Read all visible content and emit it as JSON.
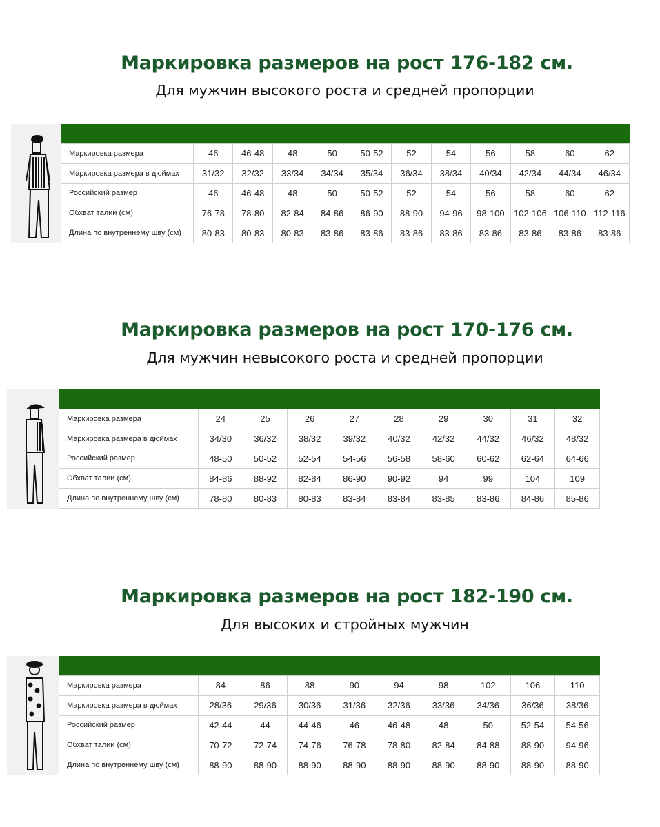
{
  "colors": {
    "title": "#1b5a2c",
    "header_bar": "#1a6a0e"
  },
  "sections": [
    {
      "title": "Маркировка размеров на рост 176-182 см.",
      "subtitle": "Для мужчин высокого роста и средней пропорции",
      "figure_icon": "man-in-striped-sweater-illustration",
      "rows": [
        {
          "label": "Маркировка размера",
          "values": [
            "46",
            "46-48",
            "48",
            "50",
            "50-52",
            "52",
            "54",
            "56",
            "58",
            "60",
            "62"
          ]
        },
        {
          "label": "Маркировка размера в дюймах",
          "values": [
            "31/32",
            "32/32",
            "33/34",
            "34/34",
            "35/34",
            "36/34",
            "38/34",
            "40/34",
            "42/34",
            "44/34",
            "46/34"
          ]
        },
        {
          "label": "Российский размер",
          "values": [
            "46",
            "46-48",
            "48",
            "50",
            "50-52",
            "52",
            "54",
            "56",
            "58",
            "60",
            "62"
          ]
        },
        {
          "label": "Обхват талии (см)",
          "values": [
            "76-78",
            "78-80",
            "82-84",
            "84-86",
            "86-90",
            "88-90",
            "94-96",
            "98-100",
            "102-106",
            "106-110",
            "112-116"
          ]
        },
        {
          "label": "Длина по внутреннему шву (см)",
          "values": [
            "80-83",
            "80-83",
            "80-83",
            "83-86",
            "83-86",
            "83-86",
            "83-86",
            "83-86",
            "83-86",
            "83-86",
            "83-86"
          ]
        }
      ]
    },
    {
      "title": "Маркировка размеров на рост 170-176 см.",
      "subtitle": "Для мужчин невысокого роста и средней пропорции",
      "figure_icon": "man-in-cap-illustration",
      "rows": [
        {
          "label": "Маркировка размера",
          "values": [
            "24",
            "25",
            "26",
            "27",
            "28",
            "29",
            "30",
            "31",
            "32"
          ]
        },
        {
          "label": "Маркировка размера в дюймах",
          "values": [
            "34/30",
            "36/32",
            "38/32",
            "39/32",
            "40/32",
            "42/32",
            "44/32",
            "46/32",
            "48/32"
          ]
        },
        {
          "label": "Российский размер",
          "values": [
            "48-50",
            "50-52",
            "52-54",
            "54-56",
            "56-58",
            "58-60",
            "60-62",
            "62-64",
            "64-66"
          ]
        },
        {
          "label": "Обхват талии (см)",
          "values": [
            "84-86",
            "88-92",
            "82-84",
            "86-90",
            "90-92",
            "94",
            "99",
            "104",
            "109"
          ]
        },
        {
          "label": "Длина по внутреннему шву (см)",
          "values": [
            "78-80",
            "80-83",
            "80-83",
            "83-84",
            "83-84",
            "83-85",
            "83-86",
            "84-86",
            "85-86"
          ]
        }
      ]
    },
    {
      "title": "Маркировка размеров на рост 182-190 см.",
      "subtitle": "Для высоких и стройных мужчин",
      "figure_icon": "man-in-hat-patterned-shirt-illustration",
      "rows": [
        {
          "label": "Маркировка размера",
          "values": [
            "84",
            "86",
            "88",
            "90",
            "94",
            "98",
            "102",
            "106",
            "110"
          ]
        },
        {
          "label": "Маркировка размера в дюймах",
          "values": [
            "28/36",
            "29/36",
            "30/36",
            "31/36",
            "32/36",
            "33/36",
            "34/36",
            "36/36",
            "38/36"
          ]
        },
        {
          "label": "Российский размер",
          "values": [
            "42-44",
            "44",
            "44-46",
            "46",
            "46-48",
            "48",
            "50",
            "52-54",
            "54-56"
          ]
        },
        {
          "label": "Обхват талии (см)",
          "values": [
            "70-72",
            "72-74",
            "74-76",
            "76-78",
            "78-80",
            "82-84",
            "84-88",
            "88-90",
            "94-96"
          ]
        },
        {
          "label": "Длина по внутреннему шву (см)",
          "values": [
            "88-90",
            "88-90",
            "88-90",
            "88-90",
            "88-90",
            "88-90",
            "88-90",
            "88-90",
            "88-90"
          ]
        }
      ]
    }
  ]
}
